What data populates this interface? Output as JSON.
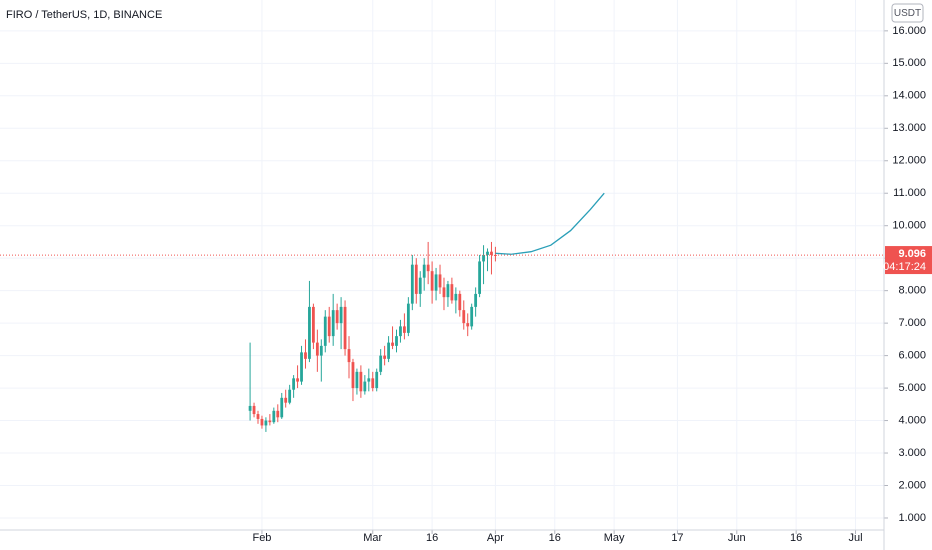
{
  "chart_data": {
    "type": "candlestick",
    "title": "FIRO / TetherUS, 1D, BINANCE",
    "currency": "USDT",
    "countdown": "04:17:24",
    "up_color": "#26a69a",
    "down_color": "#ef5350",
    "grid": true,
    "x": [
      29,
      30,
      31,
      32,
      33,
      34,
      35,
      36,
      37,
      38,
      39,
      40,
      41,
      42,
      43,
      44,
      45,
      46,
      47,
      48,
      49,
      50,
      51,
      52,
      53,
      54,
      55,
      56,
      57,
      58,
      59,
      60,
      61,
      62,
      63,
      64,
      65,
      66,
      67,
      68,
      69,
      70,
      71,
      72,
      73,
      74,
      75,
      76,
      77,
      78,
      79,
      80,
      81,
      82,
      83,
      84,
      85,
      86,
      87,
      88,
      89,
      90,
      91
    ],
    "open": [
      4.3,
      4.45,
      4.2,
      4.05,
      3.85,
      4.0,
      3.95,
      4.3,
      4.1,
      4.7,
      4.55,
      4.95,
      5.3,
      5.2,
      6.1,
      5.9,
      7.5,
      6.4,
      6.0,
      6.3,
      7.2,
      6.6,
      7.4,
      7.0,
      7.5,
      6.2,
      5.8,
      5.0,
      5.5,
      4.9,
      5.2,
      5.3,
      5.0,
      5.5,
      6.0,
      5.9,
      6.4,
      6.3,
      6.6,
      6.9,
      6.7,
      7.6,
      8.8,
      7.9,
      8.4,
      8.8,
      8.6,
      8.0,
      8.5,
      8.1,
      7.8,
      8.2,
      7.7,
      7.9,
      7.4,
      7.0,
      6.9,
      7.5,
      7.9,
      8.9,
      9.1,
      9.2,
      9.1
    ],
    "high": [
      6.4,
      4.55,
      4.3,
      4.15,
      4.1,
      4.2,
      4.4,
      4.5,
      4.85,
      4.95,
      5.1,
      5.4,
      5.7,
      6.3,
      6.5,
      8.3,
      7.6,
      6.8,
      6.5,
      7.4,
      7.5,
      7.9,
      7.6,
      7.8,
      7.7,
      6.6,
      5.9,
      5.6,
      5.7,
      5.4,
      5.6,
      5.5,
      5.6,
      6.2,
      6.3,
      6.6,
      6.9,
      6.8,
      7.1,
      7.3,
      7.8,
      9.1,
      9.0,
      8.6,
      9.0,
      9.5,
      8.9,
      8.7,
      8.8,
      8.4,
      8.3,
      8.4,
      8.1,
      8.0,
      7.7,
      7.3,
      7.6,
      8.1,
      9.1,
      9.4,
      9.3,
      9.5,
      9.35
    ],
    "low": [
      4.0,
      4.1,
      3.9,
      3.75,
      3.65,
      3.85,
      3.9,
      3.95,
      4.05,
      4.4,
      4.5,
      4.7,
      5.0,
      5.1,
      5.6,
      5.8,
      6.2,
      5.5,
      5.2,
      6.1,
      6.4,
      6.3,
      6.8,
      6.2,
      6.0,
      5.3,
      4.6,
      4.8,
      4.7,
      4.8,
      4.9,
      4.9,
      4.9,
      5.4,
      5.7,
      5.8,
      6.2,
      6.1,
      6.4,
      6.5,
      6.6,
      7.4,
      7.6,
      7.5,
      8.0,
      8.2,
      7.6,
      7.7,
      7.9,
      7.4,
      7.5,
      7.6,
      7.3,
      7.2,
      6.8,
      6.6,
      6.8,
      7.2,
      7.8,
      8.2,
      8.6,
      8.5,
      8.9
    ],
    "close": [
      4.45,
      4.2,
      4.05,
      3.85,
      4.0,
      3.95,
      4.3,
      4.1,
      4.7,
      4.55,
      4.95,
      5.3,
      5.2,
      6.1,
      5.9,
      7.5,
      6.4,
      6.0,
      6.3,
      7.2,
      6.6,
      7.4,
      7.0,
      7.5,
      6.2,
      5.8,
      5.0,
      5.5,
      4.9,
      5.2,
      5.3,
      5.0,
      5.5,
      6.0,
      5.9,
      6.4,
      6.3,
      6.6,
      6.9,
      6.7,
      7.6,
      8.8,
      7.9,
      8.4,
      8.8,
      8.6,
      8.0,
      8.5,
      8.1,
      7.8,
      8.2,
      7.7,
      7.9,
      7.4,
      7.0,
      6.9,
      7.5,
      7.9,
      8.9,
      9.1,
      9.2,
      9.1,
      9.096
    ],
    "projection": {
      "color": "#2a9fb8",
      "x": [
        91,
        95,
        100,
        105,
        110,
        115,
        118.5
      ],
      "values": [
        9.15,
        9.12,
        9.2,
        9.4,
        9.85,
        10.5,
        11.0
      ]
    },
    "xlim": [
      -34.2,
      189.2
    ],
    "xticks": [
      {
        "value": 32,
        "label": "Feb"
      },
      {
        "value": 60,
        "label": "Mar"
      },
      {
        "value": 75,
        "label": "16"
      },
      {
        "value": 91,
        "label": "Apr"
      },
      {
        "value": 106,
        "label": "16"
      },
      {
        "value": 121,
        "label": "May"
      },
      {
        "value": 137,
        "label": "17"
      },
      {
        "value": 152,
        "label": "Jun"
      },
      {
        "value": 167,
        "label": "16"
      },
      {
        "value": 182,
        "label": "Jul"
      }
    ],
    "ylim": [
      0.63,
      16.95
    ],
    "yticks": [
      {
        "value": 1,
        "label": "1.000"
      },
      {
        "value": 2,
        "label": "2.000"
      },
      {
        "value": 3,
        "label": "3.000"
      },
      {
        "value": 4,
        "label": "4.000"
      },
      {
        "value": 5,
        "label": "5.000"
      },
      {
        "value": 6,
        "label": "6.000"
      },
      {
        "value": 7,
        "label": "7.000"
      },
      {
        "value": 8,
        "label": "8.000"
      },
      {
        "value": 9,
        "label": "9.000"
      },
      {
        "value": 10,
        "label": "10.000"
      },
      {
        "value": 11,
        "label": "11.000"
      },
      {
        "value": 12,
        "label": "12.000"
      },
      {
        "value": 13,
        "label": "13.000"
      },
      {
        "value": 14,
        "label": "14.000"
      },
      {
        "value": 15,
        "label": "15.000"
      },
      {
        "value": 16,
        "label": "16.000"
      }
    ]
  }
}
